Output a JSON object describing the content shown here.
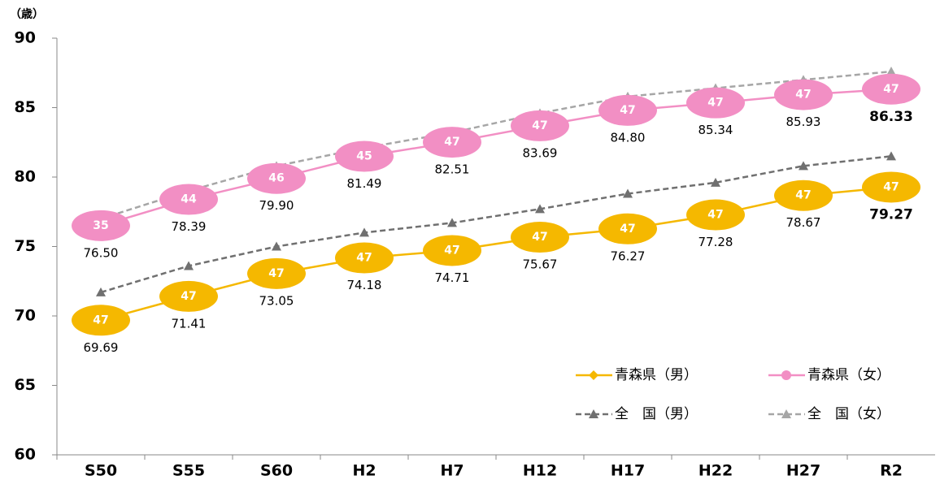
{
  "chart_data": {
    "type": "line",
    "y_axis_label": "（歳）",
    "categories": [
      "S50",
      "S55",
      "S60",
      "H2",
      "H7",
      "H12",
      "H17",
      "H22",
      "H27",
      "R2"
    ],
    "series": [
      {
        "name": "青森県（男）",
        "color": "#f5b800",
        "marker": "diamond",
        "dashed": false,
        "values": [
          69.69,
          71.41,
          73.05,
          74.18,
          74.71,
          75.67,
          76.27,
          77.28,
          78.67,
          79.27
        ],
        "value_labels": [
          "69.69",
          "71.41",
          "73.05",
          "74.18",
          "74.71",
          "75.67",
          "76.27",
          "77.28",
          "78.67",
          "79.27"
        ],
        "ranks": [
          "47",
          "47",
          "47",
          "47",
          "47",
          "47",
          "47",
          "47",
          "47",
          "47"
        ]
      },
      {
        "name": "青森県（女）",
        "color": "#f28fc4",
        "marker": "circle",
        "dashed": false,
        "values": [
          76.5,
          78.39,
          79.9,
          81.49,
          82.51,
          83.69,
          84.8,
          85.34,
          85.93,
          86.33
        ],
        "value_labels": [
          "76.50",
          "78.39",
          "79.90",
          "81.49",
          "82.51",
          "83.69",
          "84.80",
          "85.34",
          "85.93",
          "86.33"
        ],
        "ranks": [
          "35",
          "44",
          "46",
          "45",
          "47",
          "47",
          "47",
          "47",
          "47",
          "47"
        ]
      },
      {
        "name": "全　国（男）",
        "color": "#707070",
        "marker": "triangle",
        "dashed": true,
        "values": [
          71.7,
          73.6,
          75.0,
          76.0,
          76.7,
          77.7,
          78.8,
          79.6,
          80.8,
          81.5
        ]
      },
      {
        "name": "全　国（女）",
        "color": "#a6a6a6",
        "marker": "triangle",
        "dashed": true,
        "values": [
          77.0,
          79.0,
          80.8,
          82.1,
          83.2,
          84.6,
          85.8,
          86.4,
          87.0,
          87.6
        ]
      }
    ],
    "ylim": [
      60,
      90
    ],
    "yticks": [
      60,
      65,
      70,
      75,
      80,
      85,
      90
    ],
    "grid": false,
    "legend_position": "lower right"
  }
}
